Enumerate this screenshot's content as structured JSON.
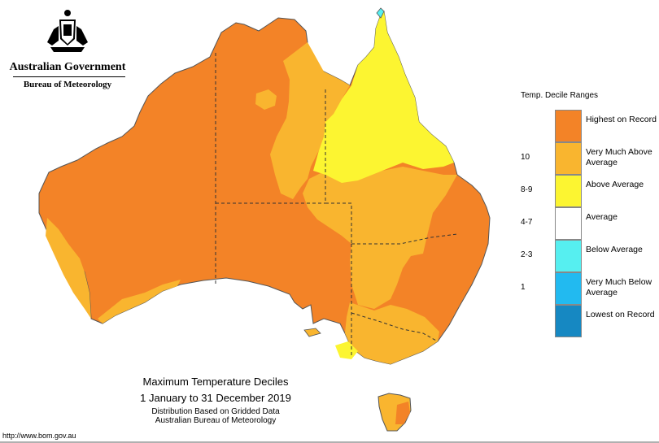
{
  "header": {
    "org_title": "Australian Government",
    "org_subtitle": "Bureau of Meteorology",
    "logo": "coat-of-arms"
  },
  "legend": {
    "title": "Temp. Decile Ranges",
    "items": [
      {
        "range": "",
        "label": "Highest on Record",
        "color": "#f38327"
      },
      {
        "range": "10",
        "label": "Very Much Above Average",
        "color": "#f9b52f"
      },
      {
        "range": "8-9",
        "label": "Above Average",
        "color": "#fcf531"
      },
      {
        "range": "4-7",
        "label": "Average",
        "color": "#ffffff"
      },
      {
        "range": "2-3",
        "label": "Below Average",
        "color": "#56eff0"
      },
      {
        "range": "1",
        "label": "Very Much Below Average",
        "color": "#22baf0"
      },
      {
        "range": "",
        "label": "Lowest on Record",
        "color": "#1688c2"
      }
    ]
  },
  "caption": {
    "title": "Maximum Temperature Deciles",
    "period": "1 January to 31 December 2019",
    "note1": "Distribution Based on Gridded Data",
    "note2": "Australian Bureau of Meteorology"
  },
  "footer": {
    "url": "http://www.bom.gov.au"
  }
}
